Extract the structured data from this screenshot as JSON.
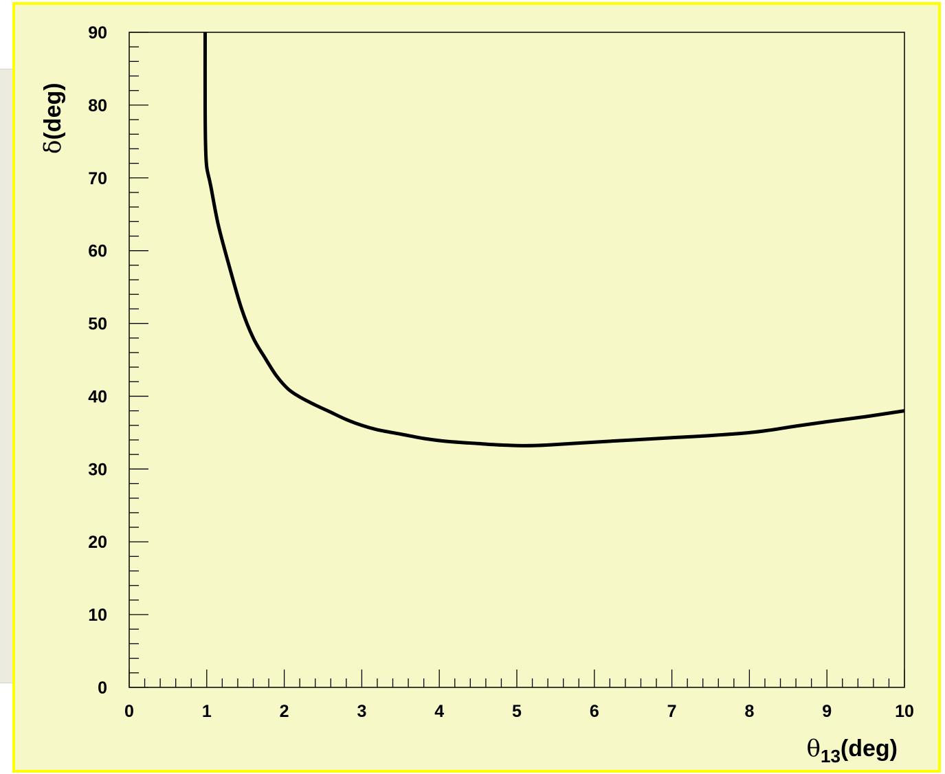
{
  "chart_data": {
    "type": "line",
    "xlabel": {
      "symbol": "θ",
      "subscript": "13",
      "unit": "(deg)"
    },
    "ylabel": {
      "symbol": "δ",
      "unit": "(deg)"
    },
    "xlim": [
      0,
      10
    ],
    "ylim": [
      0,
      90
    ],
    "x_ticks": [
      "0",
      "1",
      "2",
      "3",
      "4",
      "5",
      "6",
      "7",
      "8",
      "9",
      "10"
    ],
    "y_ticks": [
      "0",
      "10",
      "20",
      "30",
      "40",
      "50",
      "60",
      "70",
      "80",
      "90"
    ],
    "grid": false,
    "background_color": "#f7f8c8",
    "border_color": "#ffff00",
    "line_color": "#000000",
    "series": [
      {
        "x": [
          0.98,
          0.98,
          0.985,
          1.0,
          1.05,
          1.15,
          1.3,
          1.45,
          1.6,
          1.75,
          1.9,
          2.05,
          2.2,
          2.4,
          2.6,
          2.8,
          3.0,
          3.2,
          3.5,
          3.8,
          4.1,
          4.5,
          4.8,
          5.1,
          5.4,
          6.0,
          6.5,
          7.0,
          7.5,
          8.0,
          8.3,
          8.6,
          9.0,
          9.5,
          10.0
        ],
        "y": [
          90,
          80,
          74.5,
          71.5,
          69,
          63.5,
          57.5,
          52,
          48,
          45.3,
          42.8,
          41,
          39.9,
          38.8,
          37.8,
          36.8,
          36,
          35.4,
          34.8,
          34.2,
          33.8,
          33.5,
          33.3,
          33.2,
          33.3,
          33.7,
          34.0,
          34.3,
          34.6,
          35.0,
          35.4,
          35.9,
          36.5,
          37.2,
          38.0
        ]
      }
    ]
  }
}
